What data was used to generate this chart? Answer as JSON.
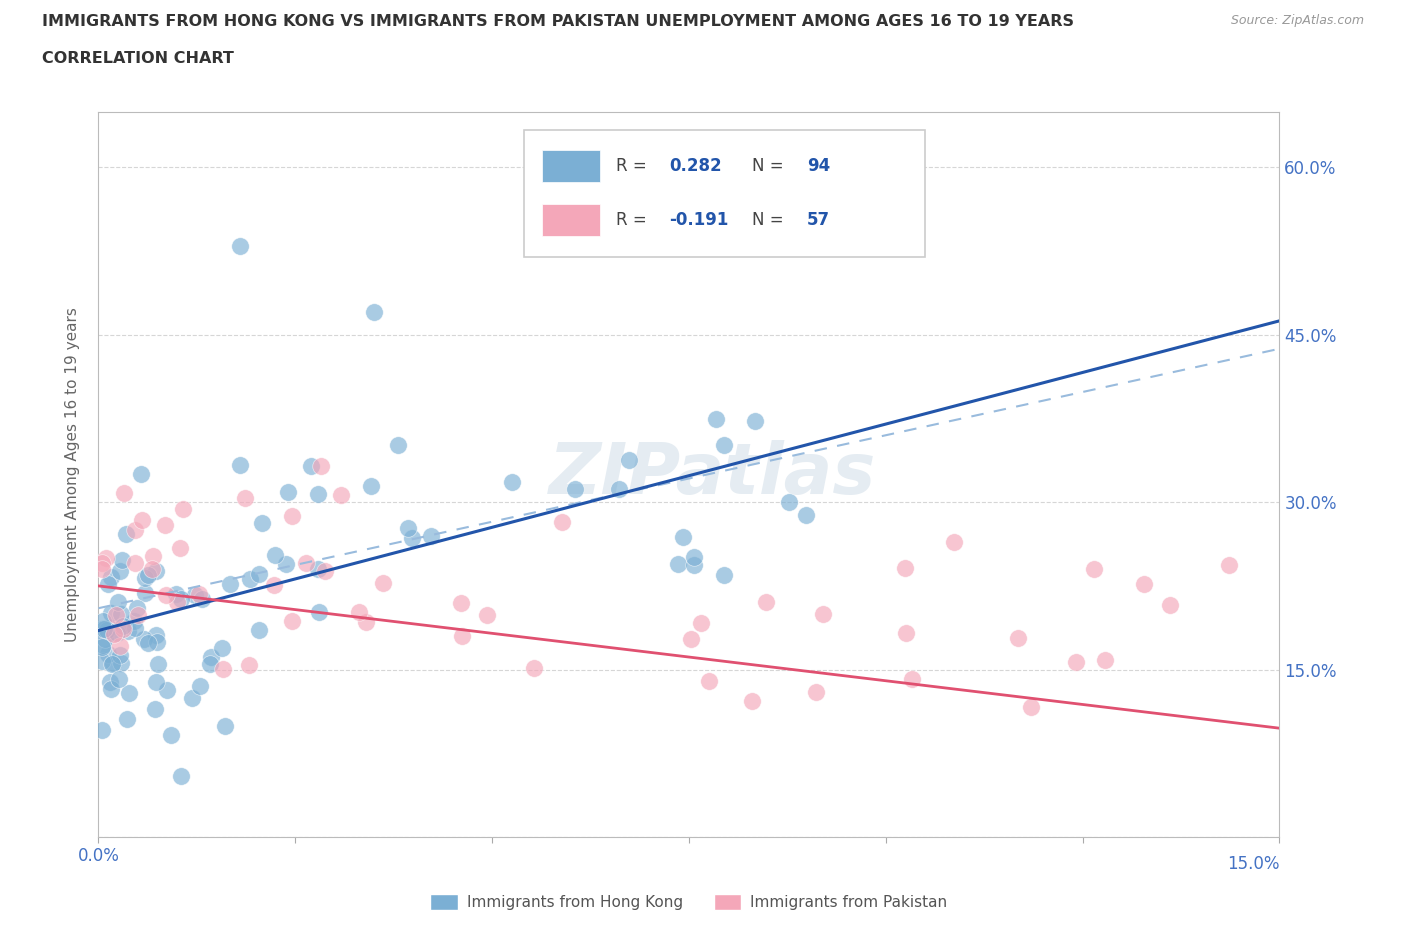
{
  "title": "IMMIGRANTS FROM HONG KONG VS IMMIGRANTS FROM PAKISTAN UNEMPLOYMENT AMONG AGES 16 TO 19 YEARS",
  "subtitle": "CORRELATION CHART",
  "source": "Source: ZipAtlas.com",
  "ylabel": "Unemployment Among Ages 16 to 19 years",
  "legend_label1": "Immigrants from Hong Kong",
  "legend_label2": "Immigrants from Pakistan",
  "R1": 0.282,
  "N1": 94,
  "R2": -0.191,
  "N2": 57,
  "color1": "#7bafd4",
  "color2": "#f4a7b9",
  "trendline1_color": "#2255aa",
  "trendline2_color": "#e05070",
  "trendline1_dashed_color": "#99bbdd",
  "xlim": [
    0,
    0.15
  ],
  "ylim": [
    0,
    0.65
  ],
  "xticks": [
    0.0,
    0.025,
    0.05,
    0.075,
    0.1,
    0.125,
    0.15
  ],
  "yticks": [
    0.0,
    0.15,
    0.3,
    0.45,
    0.6
  ],
  "watermark": "ZIPatlas",
  "background_color": "#ffffff",
  "title_color": "#333333",
  "tick_color": "#4472c4",
  "grid_color": "#cccccc",
  "figsize": [
    14.06,
    9.3
  ],
  "dpi": 100
}
